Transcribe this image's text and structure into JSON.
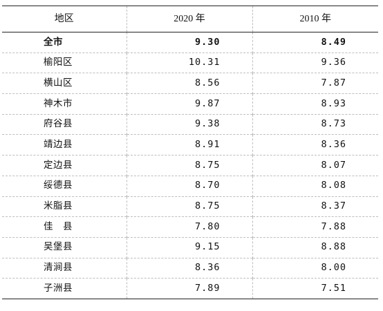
{
  "table": {
    "headers": [
      "地区",
      "2020 年",
      "2010 年"
    ],
    "rows": [
      {
        "region": "全市",
        "y2020": "9.30",
        "y2010": "8.49",
        "bold": true
      },
      {
        "region": "榆阳区",
        "y2020": "10.31",
        "y2010": "9.36"
      },
      {
        "region": "横山区",
        "y2020": "8.56",
        "y2010": "7.87"
      },
      {
        "region": "神木市",
        "y2020": "9.87",
        "y2010": "8.93"
      },
      {
        "region": "府谷县",
        "y2020": "9.38",
        "y2010": "8.73"
      },
      {
        "region": "靖边县",
        "y2020": "8.91",
        "y2010": "8.36"
      },
      {
        "region": "定边县",
        "y2020": "8.75",
        "y2010": "8.07"
      },
      {
        "region": "绥德县",
        "y2020": "8.70",
        "y2010": "8.08"
      },
      {
        "region": "米脂县",
        "y2020": "8.75",
        "y2010": "8.37"
      },
      {
        "region": "佳　县",
        "y2020": "7.80",
        "y2010": "7.88"
      },
      {
        "region": "吴堡县",
        "y2020": "9.15",
        "y2010": "8.88"
      },
      {
        "region": "清涧县",
        "y2020": "8.36",
        "y2010": "8.00"
      },
      {
        "region": "子洲县",
        "y2020": "7.89",
        "y2010": "7.51"
      }
    ]
  }
}
